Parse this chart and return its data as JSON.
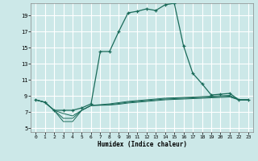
{
  "xlabel": "Humidex (Indice chaleur)",
  "bg_color": "#cce8e8",
  "grid_color": "#ffffff",
  "line_color": "#1a6b5a",
  "xlim": [
    -0.5,
    23.5
  ],
  "ylim": [
    4.5,
    20.5
  ],
  "xticks": [
    0,
    1,
    2,
    3,
    4,
    5,
    6,
    7,
    8,
    9,
    10,
    11,
    12,
    13,
    14,
    15,
    16,
    17,
    18,
    19,
    20,
    21,
    22,
    23
  ],
  "yticks": [
    5,
    7,
    9,
    11,
    13,
    15,
    17,
    19
  ],
  "main_y": [
    8.5,
    8.2,
    7.2,
    7.2,
    7.2,
    7.5,
    8.0,
    14.5,
    14.5,
    17.0,
    19.3,
    19.5,
    19.8,
    19.6,
    20.3,
    20.5,
    15.2,
    11.8,
    10.5,
    9.1,
    9.2,
    9.3,
    8.5,
    8.5
  ],
  "line2_y": [
    8.5,
    8.2,
    7.2,
    5.8,
    5.8,
    7.2,
    7.8,
    7.9,
    8.0,
    8.15,
    8.3,
    8.4,
    8.5,
    8.6,
    8.7,
    8.75,
    8.8,
    8.85,
    8.9,
    8.95,
    9.0,
    9.05,
    8.5,
    8.5
  ],
  "line3_y": [
    8.5,
    8.2,
    7.2,
    6.2,
    6.2,
    7.2,
    7.8,
    7.85,
    7.9,
    8.05,
    8.2,
    8.3,
    8.4,
    8.5,
    8.6,
    8.65,
    8.7,
    8.75,
    8.8,
    8.85,
    8.9,
    8.95,
    8.5,
    8.5
  ],
  "line4_y": [
    8.5,
    8.2,
    7.2,
    6.8,
    6.5,
    7.2,
    7.8,
    7.82,
    7.85,
    7.95,
    8.1,
    8.2,
    8.3,
    8.4,
    8.5,
    8.55,
    8.6,
    8.65,
    8.7,
    8.75,
    8.8,
    8.85,
    8.5,
    8.5
  ]
}
